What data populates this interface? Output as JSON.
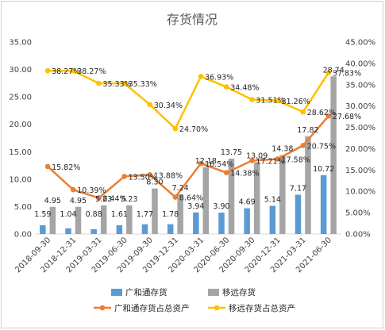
{
  "chart_data": {
    "type": "bar",
    "title": "存货情况",
    "categories": [
      "2018-09-30",
      "2018-12-31",
      "2019-03-31",
      "2019-06-30",
      "2019-09-30",
      "2019-12-31",
      "2020-03-31",
      "2020-06-30",
      "2020-09-30",
      "2020-12-31",
      "2021-03-31",
      "2021-06-30"
    ],
    "series": [
      {
        "name": "广和通存货",
        "type": "bar",
        "axis": "left",
        "color": "#5b9bd5",
        "values": [
          1.59,
          1.04,
          0.88,
          1.61,
          1.77,
          1.78,
          3.94,
          3.9,
          4.69,
          5.14,
          7.17,
          10.72
        ],
        "labels": [
          "1.59",
          "1.04",
          "0.88",
          "1.61",
          "1.77",
          "1.78",
          "3.94",
          "3.90",
          "4.69",
          "5.14",
          "7.17",
          "10.72"
        ]
      },
      {
        "name": "移远存货",
        "type": "bar",
        "axis": "left",
        "color": "#a5a5a5",
        "values": [
          4.95,
          4.95,
          5.23,
          5.23,
          8.3,
          7.24,
          12.18,
          13.75,
          13.09,
          14.38,
          17.82,
          28.74
        ],
        "labels": [
          "4.95",
          "4.95",
          "5.23",
          "5.23",
          "8.30",
          "7.24",
          "12.18",
          "13.75",
          "13.09",
          "14.38",
          "17.82",
          "28.74"
        ]
      },
      {
        "name": "广和通存货占总资产",
        "type": "line",
        "axis": "right",
        "color": "#ed7d31",
        "values": [
          15.82,
          10.39,
          8.44,
          13.5,
          13.88,
          8.64,
          16.54,
          14.38,
          17.21,
          17.58,
          20.75,
          27.68
        ],
        "labels": [
          "15.82%",
          "10.39%",
          "8.44%",
          "13.50%",
          "13.88%",
          "8.64%",
          "16.54%",
          "14.38%",
          "17.21%",
          "17.58%",
          "20.75%",
          "27.68%"
        ]
      },
      {
        "name": "移远存货占总资产",
        "type": "line",
        "axis": "right",
        "color": "#ffc000",
        "values": [
          38.27,
          38.27,
          35.33,
          35.33,
          30.34,
          24.7,
          36.93,
          34.48,
          31.51,
          31.26,
          28.62,
          37.83
        ],
        "labels": [
          "38.27%",
          "38.27%",
          "35.33%",
          "35.33%",
          "30.34%",
          "24.70%",
          "36.93%",
          "34.48%",
          "31.51%",
          "31.26%",
          "28.62%",
          "37.83%"
        ]
      }
    ],
    "left_axis": {
      "min": 0,
      "max": 35,
      "step": 5,
      "ticks": [
        "0.00",
        "5.00",
        "10.00",
        "15.00",
        "20.00",
        "25.00",
        "30.00",
        "35.00"
      ]
    },
    "right_axis": {
      "min": 0,
      "max": 45,
      "step": 5,
      "ticks": [
        "0.00%",
        "5.00%",
        "10.00%",
        "15.00%",
        "20.00%",
        "25.00%",
        "30.00%",
        "35.00%",
        "40.00%",
        "45.00%"
      ]
    },
    "legend": {
      "position": "bottom"
    },
    "grid": false
  }
}
